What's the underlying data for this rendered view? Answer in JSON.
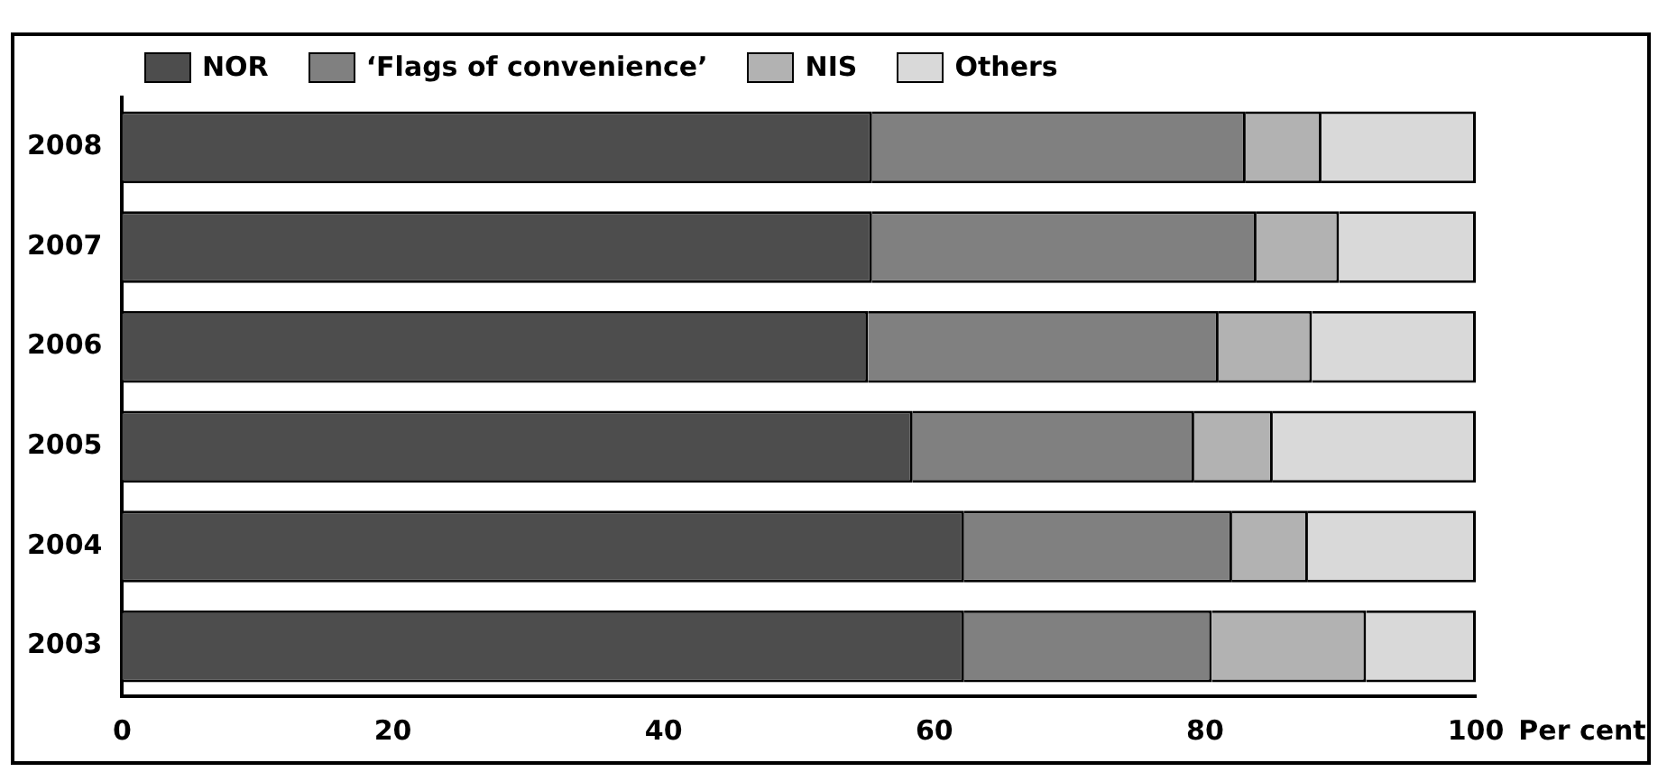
{
  "chart_data": {
    "type": "bar",
    "orientation": "horizontal",
    "stacked": true,
    "categories": [
      "2008",
      "2007",
      "2006",
      "2005",
      "2004",
      "2003"
    ],
    "series": [
      {
        "name": "NOR",
        "color": "#4d4d4d",
        "values": [
          55.4,
          55.4,
          55.1,
          58.4,
          62.2,
          62.2
        ]
      },
      {
        "name": "‘Flags of convenience’",
        "color": "#808080",
        "values": [
          27.6,
          28.4,
          25.9,
          20.8,
          19.8,
          18.3
        ]
      },
      {
        "name": "NIS",
        "color": "#b2b2b2",
        "values": [
          5.6,
          6.1,
          6.9,
          5.8,
          5.6,
          11.4
        ]
      },
      {
        "name": "Others",
        "color": "#d9d9d9",
        "values": [
          11.4,
          10.1,
          12.1,
          15.0,
          12.4,
          8.1
        ]
      }
    ],
    "xlim": [
      0,
      100
    ],
    "xticks": [
      0,
      20,
      40,
      60,
      80,
      100
    ],
    "xlabel": "Per cent",
    "grid": false,
    "legend": "top left"
  }
}
